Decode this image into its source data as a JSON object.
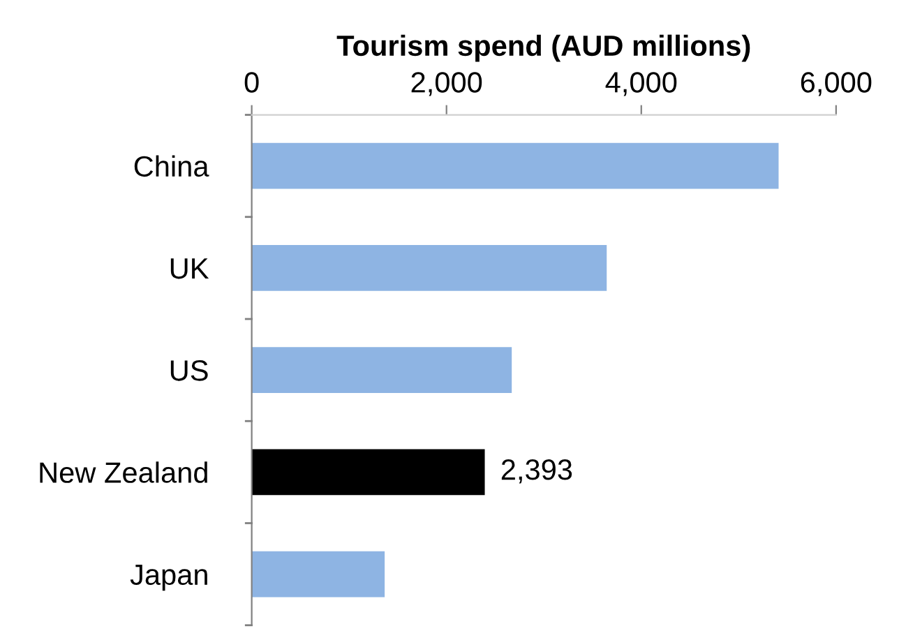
{
  "chart_data": {
    "type": "bar",
    "orientation": "horizontal",
    "xlabel": "Tourism spend (AUD millions)",
    "categories": [
      "China",
      "UK",
      "US",
      "New Zealand",
      "Japan"
    ],
    "values": [
      5410,
      3645,
      2670,
      2393,
      1365
    ],
    "colors": [
      "#8eb4e3",
      "#8eb4e3",
      "#8eb4e3",
      "#000000",
      "#8eb4e3"
    ],
    "value_labels": [
      null,
      null,
      null,
      "2,393",
      null
    ],
    "xlim": [
      0,
      6000
    ],
    "xticks": [
      {
        "value": 0,
        "label": "0"
      },
      {
        "value": 2000,
        "label": "2,000"
      },
      {
        "value": 4000,
        "label": "4,000"
      },
      {
        "value": 6000,
        "label": "6,000"
      }
    ],
    "grid": false
  }
}
